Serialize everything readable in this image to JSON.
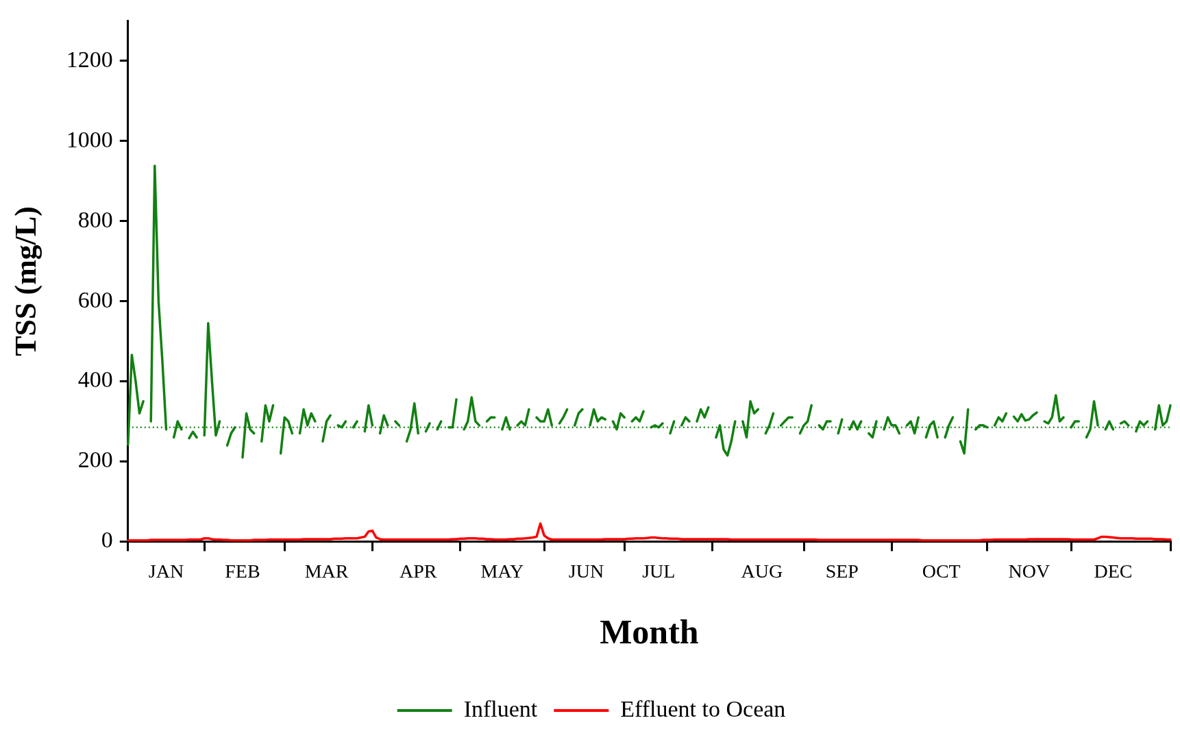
{
  "chart_data": {
    "type": "line",
    "xlabel": "Month",
    "ylabel": "TSS (mg/L)",
    "categories": [
      null,
      null,
      null,
      null,
      null,
      null,
      null,
      null,
      null,
      null,
      "JAN",
      null,
      null,
      null,
      null,
      null,
      null,
      null,
      null,
      null,
      null,
      null,
      null,
      null,
      null,
      null,
      null,
      null,
      null,
      null,
      "FEB",
      null,
      null,
      null,
      null,
      null,
      null,
      null,
      null,
      null,
      null,
      null,
      null,
      null,
      null,
      null,
      null,
      null,
      null,
      null,
      null,
      null,
      "MAR",
      null,
      null,
      null,
      null,
      null,
      null,
      null,
      null,
      null,
      null,
      null,
      null,
      null,
      null,
      null,
      null,
      null,
      null,
      null,
      null,
      null,
      null,
      null,
      "APR",
      null,
      null,
      null,
      null,
      null,
      null,
      null,
      null,
      null,
      null,
      null,
      null,
      null,
      null,
      null,
      null,
      null,
      null,
      null,
      null,
      null,
      "MAY",
      null,
      null,
      null,
      null,
      null,
      null,
      null,
      null,
      null,
      null,
      null,
      null,
      null,
      null,
      null,
      null,
      null,
      null,
      null,
      null,
      null,
      "JUN",
      null,
      null,
      null,
      null,
      null,
      null,
      null,
      null,
      null,
      null,
      null,
      null,
      null,
      null,
      null,
      null,
      null,
      null,
      "JUL",
      null,
      null,
      null,
      null,
      null,
      null,
      null,
      null,
      null,
      null,
      null,
      null,
      null,
      null,
      null,
      null,
      null,
      null,
      null,
      null,
      null,
      null,
      null,
      null,
      null,
      null,
      "AUG",
      null,
      null,
      null,
      null,
      null,
      null,
      null,
      null,
      null,
      null,
      null,
      null,
      null,
      null,
      null,
      null,
      null,
      null,
      null,
      null,
      "SEP",
      null,
      null,
      null,
      null,
      null,
      null,
      null,
      null,
      null,
      null,
      null,
      null,
      null,
      null,
      null,
      null,
      null,
      null,
      null,
      null,
      null,
      null,
      null,
      null,
      null,
      "OCT",
      null,
      null,
      null,
      null,
      null,
      null,
      null,
      null,
      null,
      null,
      null,
      null,
      null,
      null,
      null,
      null,
      null,
      null,
      null,
      null,
      null,
      null,
      "NOV",
      null,
      null,
      null,
      null,
      null,
      null,
      null,
      null,
      null,
      null,
      null,
      null,
      null,
      null,
      null,
      null,
      null,
      null,
      null,
      null,
      null,
      "DEC",
      null,
      null,
      null,
      null,
      null,
      null,
      null,
      null,
      null,
      null,
      null,
      null,
      null,
      null,
      null
    ],
    "ylim": [
      0,
      1300
    ],
    "yticks": [
      0,
      200,
      400,
      600,
      800,
      1000,
      1200
    ],
    "grid": false,
    "legend": "bottom",
    "marker": "none",
    "line_style": "solid",
    "ref_lines": [
      {
        "axis": "y",
        "value": 285,
        "color": "#2f8f2f",
        "line_style": "dotted"
      }
    ],
    "series": [
      {
        "name": "Influent",
        "color": "#128012",
        "values": [
          242,
          466,
          400,
          320,
          350,
          null,
          300,
          938,
          600,
          450,
          280,
          null,
          260,
          300,
          280,
          null,
          258,
          274,
          260,
          null,
          265,
          545,
          400,
          265,
          300,
          null,
          240,
          270,
          285,
          null,
          210,
          320,
          280,
          270,
          null,
          250,
          340,
          300,
          340,
          null,
          220,
          310,
          300,
          270,
          null,
          270,
          330,
          290,
          320,
          300,
          null,
          250,
          300,
          315,
          null,
          290,
          285,
          300,
          null,
          285,
          300,
          null,
          275,
          340,
          290,
          null,
          270,
          315,
          290,
          null,
          300,
          290,
          null,
          250,
          280,
          345,
          270,
          null,
          275,
          295,
          null,
          280,
          300,
          null,
          285,
          285,
          355,
          null,
          280,
          300,
          360,
          300,
          290,
          null,
          300,
          310,
          310,
          null,
          280,
          310,
          280,
          null,
          290,
          300,
          290,
          330,
          null,
          310,
          300,
          300,
          330,
          290,
          null,
          295,
          310,
          330,
          null,
          290,
          320,
          330,
          null,
          290,
          330,
          300,
          310,
          305,
          null,
          300,
          280,
          320,
          310,
          null,
          300,
          310,
          300,
          325,
          null,
          285,
          290,
          285,
          295,
          null,
          270,
          300,
          null,
          290,
          310,
          300,
          null,
          300,
          330,
          310,
          335,
          null,
          260,
          290,
          230,
          215,
          250,
          300,
          null,
          300,
          260,
          350,
          320,
          330,
          null,
          270,
          290,
          320,
          null,
          290,
          300,
          310,
          310,
          null,
          270,
          290,
          300,
          340,
          null,
          290,
          280,
          300,
          300,
          null,
          270,
          305,
          null,
          280,
          300,
          280,
          300,
          null,
          270,
          260,
          300,
          null,
          280,
          310,
          290,
          290,
          270,
          null,
          290,
          300,
          270,
          310,
          null,
          260,
          290,
          300,
          260,
          null,
          260,
          290,
          310,
          null,
          250,
          220,
          330,
          null,
          280,
          290,
          290,
          285,
          null,
          290,
          310,
          300,
          320,
          null,
          312,
          300,
          318,
          302,
          305,
          315,
          322,
          null,
          300,
          295,
          310,
          365,
          300,
          310,
          null,
          285,
          300,
          300,
          null,
          260,
          280,
          350,
          290,
          null,
          280,
          300,
          280,
          null,
          295,
          300,
          290,
          null,
          275,
          300,
          290,
          300,
          null,
          280,
          340,
          290,
          300,
          340
        ]
      },
      {
        "name": "Effluent to Ocean",
        "color": "#ff0000",
        "values": [
          3,
          3,
          3,
          3,
          3,
          3,
          4,
          4,
          4,
          4,
          4,
          4,
          4,
          4,
          4,
          4,
          5,
          5,
          5,
          5,
          8,
          8,
          6,
          5,
          5,
          4,
          4,
          3,
          3,
          3,
          3,
          3,
          3,
          4,
          4,
          4,
          4,
          5,
          5,
          5,
          5,
          5,
          5,
          5,
          5,
          5,
          6,
          6,
          6,
          6,
          6,
          6,
          6,
          6,
          7,
          7,
          7,
          8,
          8,
          8,
          8,
          10,
          12,
          25,
          27,
          10,
          6,
          5,
          5,
          5,
          5,
          5,
          5,
          5,
          5,
          5,
          5,
          5,
          5,
          5,
          5,
          5,
          5,
          5,
          5,
          6,
          6,
          7,
          7,
          8,
          8,
          8,
          7,
          7,
          6,
          6,
          5,
          5,
          5,
          5,
          6,
          6,
          7,
          7,
          8,
          9,
          10,
          12,
          45,
          15,
          8,
          5,
          5,
          5,
          5,
          5,
          5,
          5,
          5,
          5,
          5,
          5,
          5,
          5,
          5,
          6,
          6,
          6,
          6,
          6,
          6,
          7,
          7,
          8,
          8,
          8,
          9,
          10,
          10,
          9,
          8,
          8,
          7,
          7,
          7,
          6,
          6,
          6,
          6,
          6,
          6,
          6,
          6,
          6,
          6,
          6,
          6,
          6,
          5,
          5,
          5,
          5,
          5,
          5,
          5,
          5,
          5,
          5,
          5,
          5,
          5,
          5,
          5,
          5,
          5,
          5,
          5,
          5,
          5,
          5,
          5,
          4,
          4,
          4,
          4,
          4,
          4,
          4,
          4,
          4,
          4,
          4,
          4,
          4,
          4,
          4,
          4,
          4,
          4,
          4,
          4,
          4,
          4,
          4,
          4,
          4,
          4,
          4,
          3,
          3,
          3,
          3,
          3,
          3,
          3,
          3,
          3,
          3,
          3,
          3,
          3,
          3,
          3,
          3,
          4,
          4,
          4,
          5,
          5,
          5,
          5,
          5,
          5,
          5,
          5,
          5,
          6,
          6,
          6,
          6,
          6,
          6,
          6,
          6,
          6,
          6,
          6,
          5,
          5,
          5,
          5,
          5,
          5,
          5,
          8,
          12,
          12,
          11,
          10,
          9,
          8,
          8,
          8,
          8,
          7,
          7,
          7,
          7,
          7,
          6,
          6,
          6,
          5,
          5
        ]
      }
    ]
  }
}
